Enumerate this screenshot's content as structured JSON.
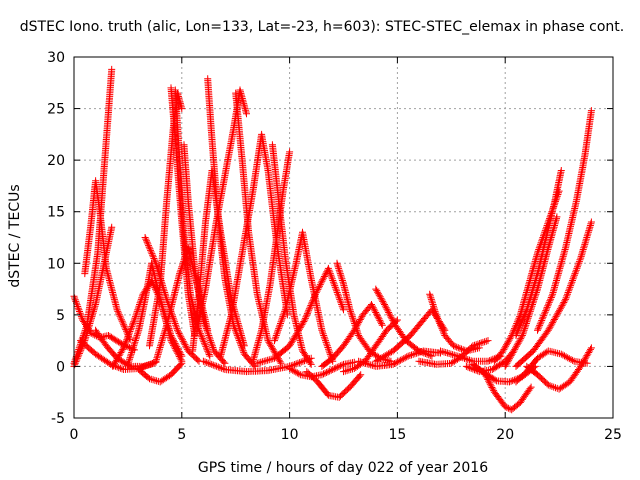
{
  "chart_data": {
    "type": "scatter",
    "title": "dSTEC Iono. truth (alic, Lon=133, Lat=-23, h=603): STEC-STEC_elemax in phase cont.",
    "xlabel": "GPS time / hours of day 022 of year 2016",
    "ylabel": "dSTEC  / TECUs",
    "xlim": [
      0,
      25
    ],
    "ylim": [
      -5,
      30
    ],
    "xticks": [
      0,
      5,
      10,
      15,
      20,
      25
    ],
    "yticks": [
      -5,
      0,
      5,
      10,
      15,
      20,
      25,
      30
    ],
    "grid": true,
    "marker": "plus",
    "color": "#ff0000",
    "passes": [
      {
        "x": [
          0.0,
          0.6,
          1.1,
          1.5,
          1.75
        ],
        "y": [
          0.3,
          4.0,
          11.0,
          22.0,
          28.8
        ]
      },
      {
        "x": [
          0.0,
          0.4,
          0.8,
          1.2,
          1.6,
          2.2,
          2.8
        ],
        "y": [
          6.8,
          4.5,
          3.2,
          2.8,
          3.0,
          2.2,
          1.6
        ]
      },
      {
        "x": [
          0.0,
          0.5,
          1.0,
          1.4,
          1.75
        ],
        "y": [
          0.0,
          2.5,
          6.0,
          10.0,
          13.5
        ]
      },
      {
        "x": [
          0.5,
          0.8,
          1.0,
          1.2,
          1.5,
          2.0,
          2.6
        ],
        "y": [
          9.0,
          14.0,
          18.0,
          15.0,
          9.5,
          5.5,
          2.6
        ]
      },
      {
        "x": [
          0.3,
          1.0,
          1.7,
          2.3,
          3.0,
          3.8
        ],
        "y": [
          2.5,
          1.2,
          0.2,
          -0.3,
          -0.2,
          0.4
        ]
      },
      {
        "x": [
          1.0,
          1.5,
          2.0,
          2.6,
          3.2,
          3.7
        ],
        "y": [
          3.5,
          2.0,
          0.8,
          0.0,
          0.0,
          0.3
        ]
      },
      {
        "x": [
          1.8,
          2.3,
          2.8,
          3.2,
          3.6,
          4.0,
          4.5,
          5.0
        ],
        "y": [
          0.0,
          1.8,
          4.5,
          7.0,
          8.3,
          6.5,
          3.0,
          1.0
        ]
      },
      {
        "x": [
          2.5,
          3.0,
          3.3,
          3.6,
          4.0,
          4.5,
          5.0
        ],
        "y": [
          0.2,
          3.5,
          6.5,
          10.0,
          6.5,
          2.5,
          0.5
        ]
      },
      {
        "x": [
          3.3,
          3.8,
          4.3,
          4.8,
          5.3,
          5.8
        ],
        "y": [
          12.5,
          10.0,
          6.5,
          3.5,
          1.5,
          0.5
        ]
      },
      {
        "x": [
          3.0,
          3.5,
          4.0,
          4.5,
          5.0
        ],
        "y": [
          -0.3,
          -1.2,
          -1.5,
          -0.8,
          0.3
        ]
      },
      {
        "x": [
          3.5,
          4.0,
          4.3,
          4.6,
          4.8,
          5.0
        ],
        "y": [
          2.0,
          8.0,
          16.0,
          23.0,
          26.5,
          25.0
        ]
      },
      {
        "x": [
          4.5,
          4.7,
          5.0,
          5.3,
          5.6
        ],
        "y": [
          27.0,
          22.0,
          14.0,
          7.0,
          3.0
        ]
      },
      {
        "x": [
          4.7,
          4.9,
          5.1,
          5.4,
          5.8,
          6.3
        ],
        "y": [
          26.8,
          20.0,
          13.0,
          7.0,
          3.5,
          1.0
        ]
      },
      {
        "x": [
          3.8,
          4.3,
          4.9,
          5.3,
          5.7,
          6.2
        ],
        "y": [
          0.5,
          4.0,
          9.0,
          11.5,
          8.0,
          3.5
        ]
      },
      {
        "x": [
          5.1,
          5.3,
          5.6,
          6.0,
          6.5,
          7.0
        ],
        "y": [
          21.5,
          16.0,
          9.5,
          4.5,
          1.5,
          0.3
        ]
      },
      {
        "x": [
          5.5,
          5.8,
          6.1,
          6.4,
          6.8,
          7.3,
          7.9
        ],
        "y": [
          1.5,
          7.0,
          14.0,
          19.0,
          13.0,
          6.5,
          2.0
        ]
      },
      {
        "x": [
          6.2,
          6.4,
          6.7,
          7.0,
          7.4,
          7.9,
          8.4
        ],
        "y": [
          27.9,
          22.0,
          14.0,
          8.5,
          4.0,
          1.2,
          0.0
        ]
      },
      {
        "x": [
          5.7,
          6.1,
          6.6,
          7.0,
          7.4,
          7.7,
          8.0
        ],
        "y": [
          3.5,
          7.5,
          14.0,
          18.5,
          23.0,
          26.8,
          24.5
        ]
      },
      {
        "x": [
          7.5,
          7.8,
          8.1,
          8.5,
          9.0,
          9.6
        ],
        "y": [
          26.5,
          20.0,
          13.0,
          7.0,
          2.5,
          0.3
        ]
      },
      {
        "x": [
          6.8,
          7.3,
          7.8,
          8.3,
          8.7,
          9.0,
          9.4,
          9.9
        ],
        "y": [
          1.0,
          5.0,
          11.0,
          17.0,
          22.5,
          19.0,
          12.0,
          5.0
        ]
      },
      {
        "x": [
          8.3,
          8.7,
          9.1,
          9.4,
          9.7,
          10.0
        ],
        "y": [
          0.5,
          3.5,
          8.0,
          12.5,
          17.0,
          20.8
        ]
      },
      {
        "x": [
          9.2,
          9.5,
          9.8,
          10.2,
          10.6,
          11.0
        ],
        "y": [
          21.5,
          16.0,
          10.5,
          5.0,
          1.5,
          0.2
        ]
      },
      {
        "x": [
          9.3,
          9.8,
          10.3,
          10.6,
          11.0,
          11.5,
          12.0
        ],
        "y": [
          2.5,
          5.5,
          10.0,
          13.0,
          8.5,
          3.5,
          0.5
        ]
      },
      {
        "x": [
          8.5,
          9.3,
          10.0,
          10.7,
          11.2,
          11.8,
          12.5
        ],
        "y": [
          0.3,
          0.8,
          2.0,
          4.5,
          7.0,
          9.5,
          5.5
        ]
      },
      {
        "x": [
          6.0,
          7.0,
          8.0,
          9.0,
          10.0,
          11.0
        ],
        "y": [
          0.5,
          -0.3,
          -0.5,
          -0.4,
          0.0,
          0.8
        ]
      },
      {
        "x": [
          10.0,
          10.5,
          11.0,
          11.5,
          12.0,
          12.5,
          13.0
        ],
        "y": [
          -0.2,
          -0.8,
          -1.0,
          -0.8,
          -0.3,
          0.2,
          0.4
        ]
      },
      {
        "x": [
          10.8,
          11.3,
          11.8,
          12.3,
          12.8,
          13.3
        ],
        "y": [
          -0.5,
          -1.5,
          -2.8,
          -3.0,
          -2.0,
          -0.8
        ]
      },
      {
        "x": [
          12.2,
          12.5,
          12.8,
          13.2,
          13.7,
          14.2,
          14.7
        ],
        "y": [
          10.0,
          8.0,
          5.5,
          3.0,
          1.5,
          0.8,
          0.5
        ]
      },
      {
        "x": [
          11.5,
          12.0,
          12.5,
          13.0,
          13.4,
          13.8,
          14.3
        ],
        "y": [
          0.0,
          0.8,
          2.0,
          3.5,
          5.0,
          6.0,
          4.0
        ]
      },
      {
        "x": [
          12.5,
          13.0,
          13.5,
          14.0,
          14.5,
          15.0
        ],
        "y": [
          -0.5,
          -0.2,
          0.5,
          2.0,
          3.5,
          4.5
        ]
      },
      {
        "x": [
          14.0,
          14.4,
          14.9,
          15.4,
          16.0,
          16.6
        ],
        "y": [
          7.5,
          6.0,
          4.0,
          2.5,
          1.5,
          1.0
        ]
      },
      {
        "x": [
          13.2,
          14.0,
          14.8,
          15.5,
          16.2,
          17.0
        ],
        "y": [
          0.5,
          0.0,
          0.2,
          1.0,
          1.5,
          1.3
        ]
      },
      {
        "x": [
          14.0,
          14.8,
          15.6,
          16.2,
          16.6,
          17.2
        ],
        "y": [
          0.5,
          1.5,
          3.0,
          4.5,
          5.5,
          3.5
        ]
      },
      {
        "x": [
          16.5,
          16.8,
          17.2,
          17.6,
          18.2,
          18.8
        ],
        "y": [
          7.0,
          5.0,
          3.0,
          2.0,
          1.5,
          1.8
        ]
      },
      {
        "x": [
          16.0,
          16.8,
          17.5,
          18.0,
          18.5,
          19.2
        ],
        "y": [
          0.5,
          0.2,
          0.3,
          1.0,
          2.0,
          2.5
        ]
      },
      {
        "x": [
          17.0,
          17.8,
          18.5,
          19.2,
          19.8
        ],
        "y": [
          1.5,
          1.0,
          0.5,
          0.5,
          1.0
        ]
      },
      {
        "x": [
          18.2,
          18.8,
          19.4,
          20.0,
          20.4
        ],
        "y": [
          0.0,
          -0.5,
          -0.3,
          0.5,
          1.5
        ]
      },
      {
        "x": [
          18.5,
          19.0,
          19.6,
          20.2,
          20.8,
          21.4
        ],
        "y": [
          0.2,
          -0.6,
          -1.4,
          -1.5,
          -1.0,
          0.0
        ]
      },
      {
        "x": [
          19.0,
          19.5,
          20.0,
          20.3,
          20.7,
          21.2
        ],
        "y": [
          -0.5,
          -2.5,
          -3.9,
          -4.2,
          -3.5,
          -2.0
        ]
      },
      {
        "x": [
          19.5,
          19.9,
          20.3,
          20.7,
          21.1,
          21.5,
          22.0,
          22.5
        ],
        "y": [
          0.5,
          1.5,
          3.0,
          5.0,
          8.0,
          11.0,
          14.0,
          17.0
        ]
      },
      {
        "x": [
          20.5,
          21.0,
          21.5,
          21.9,
          22.3,
          22.6
        ],
        "y": [
          3.0,
          5.5,
          9.0,
          12.5,
          16.0,
          19.0
        ]
      },
      {
        "x": [
          20.0,
          20.8,
          21.5,
          22.0,
          22.4
        ],
        "y": [
          0.0,
          3.0,
          7.5,
          11.5,
          14.5
        ]
      },
      {
        "x": [
          20.5,
          21.3,
          22.0,
          22.8,
          23.5,
          24.0
        ],
        "y": [
          0.0,
          1.5,
          3.5,
          6.5,
          10.5,
          14.0
        ]
      },
      {
        "x": [
          21.5,
          22.2,
          22.8,
          23.3,
          23.7,
          24.0
        ],
        "y": [
          3.5,
          7.0,
          11.5,
          16.0,
          20.5,
          24.8
        ]
      },
      {
        "x": [
          20.5,
          21.0,
          21.5,
          22.0,
          22.6,
          23.2,
          23.8
        ],
        "y": [
          -1.5,
          -0.5,
          0.8,
          1.5,
          1.2,
          0.5,
          0.3
        ]
      },
      {
        "x": [
          21.0,
          21.5,
          22.0,
          22.5,
          23.0,
          23.5,
          24.0
        ],
        "y": [
          0.0,
          -0.8,
          -1.8,
          -2.2,
          -1.5,
          0.0,
          1.8
        ]
      }
    ]
  }
}
